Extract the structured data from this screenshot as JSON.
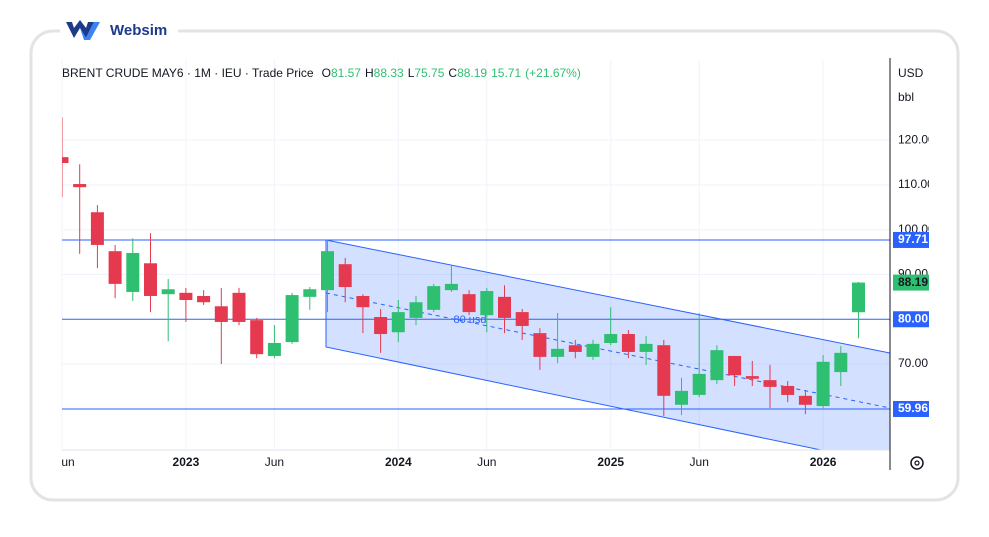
{
  "brand": "Websim",
  "chart_data": {
    "type": "candlestick",
    "title": "BRENT CRUDE MAY6 · 1M · IEU · Trade Price",
    "ohlc_labels": [
      "O",
      "H",
      "L",
      "C"
    ],
    "change": 15.71,
    "change_label": "(+21.67%)",
    "currency": "USD",
    "unit": "bbl",
    "categories": [
      "un",
      null,
      null,
      null,
      null,
      null,
      null,
      "2023",
      null,
      null,
      null,
      null,
      "Jun",
      null,
      null,
      null,
      null,
      null,
      null,
      "2024",
      null,
      null,
      null,
      null,
      "Jun",
      null,
      null,
      null,
      null,
      null,
      null,
      "2025",
      null,
      null,
      null,
      null,
      "Jun",
      null,
      null,
      null,
      null,
      null,
      null,
      "2026",
      null,
      null
    ],
    "open": [
      116.2,
      110.2,
      103.9,
      95.2,
      86.1,
      92.5,
      85.6,
      85.9,
      85.2,
      82.9,
      85.9,
      79.8,
      71.8,
      74.9,
      85.0,
      86.5,
      92.3,
      85.2,
      80.5,
      77.1,
      80.3,
      82.1,
      86.5,
      85.6,
      80.9,
      85.0,
      81.6,
      76.9,
      71.6,
      74.2,
      71.6,
      74.7,
      76.7,
      72.7,
      74.2,
      60.9,
      63.1,
      66.4,
      71.8,
      67.3,
      66.4,
      65.1,
      62.9,
      60.6,
      68.2,
      81.57
    ],
    "high": [
      125.1,
      114.6,
      105.5,
      96.6,
      98.1,
      99.2,
      89.0,
      87.0,
      86.5,
      87.0,
      87.0,
      80.3,
      78.7,
      85.9,
      87.2,
      97.7,
      93.7,
      85.6,
      82.3,
      84.3,
      85.2,
      87.9,
      92.1,
      86.5,
      87.0,
      87.6,
      82.3,
      78.0,
      81.4,
      75.4,
      75.4,
      82.7,
      77.6,
      76.3,
      75.4,
      66.9,
      81.4,
      74.2,
      71.8,
      70.7,
      69.8,
      66.2,
      64.2,
      72.0,
      74.0,
      88.33
    ],
    "low": [
      107.3,
      94.6,
      91.4,
      84.7,
      84.1,
      81.6,
      75.1,
      79.4,
      83.2,
      70.0,
      78.7,
      71.3,
      71.3,
      74.5,
      82.1,
      81.6,
      83.8,
      76.9,
      72.5,
      74.9,
      78.7,
      81.6,
      86.1,
      80.9,
      77.1,
      76.9,
      75.4,
      68.7,
      70.2,
      71.3,
      70.9,
      74.2,
      71.3,
      69.8,
      58.4,
      58.6,
      62.6,
      65.5,
      65.1,
      65.1,
      60.2,
      61.5,
      58.8,
      60.2,
      65.1,
      75.75
    ],
    "close": [
      114.9,
      109.5,
      96.6,
      87.9,
      94.8,
      85.2,
      86.7,
      84.3,
      83.8,
      79.4,
      79.4,
      72.2,
      74.7,
      85.4,
      86.7,
      95.2,
      87.2,
      82.7,
      76.7,
      81.6,
      83.8,
      87.4,
      87.9,
      81.6,
      86.3,
      80.3,
      78.5,
      71.6,
      73.4,
      72.7,
      74.5,
      76.7,
      72.7,
      74.5,
      62.9,
      64.0,
      67.8,
      73.1,
      67.5,
      66.7,
      64.9,
      63.1,
      60.9,
      70.5,
      72.5,
      88.19
    ],
    "up_color": "#2fbf71",
    "down_color": "#e5394f",
    "ylim": [
      50.8,
      137.9
    ],
    "yticks": [
      {
        "value": 120,
        "label": "120.00"
      },
      {
        "value": 110,
        "label": "110.00"
      },
      {
        "value": 100,
        "label": "100.00"
      },
      {
        "value": 90,
        "label": "90.00"
      },
      {
        "value": 70,
        "label": "70.00"
      }
    ],
    "grid": true,
    "hlines": [
      {
        "value": 97.71,
        "label": "97.71"
      },
      {
        "value": 80,
        "label": "80.00"
      },
      {
        "value": 59.96,
        "label": "59.96"
      }
    ],
    "hline_color": "#2962ff",
    "channel_label": "80 usd"
  }
}
